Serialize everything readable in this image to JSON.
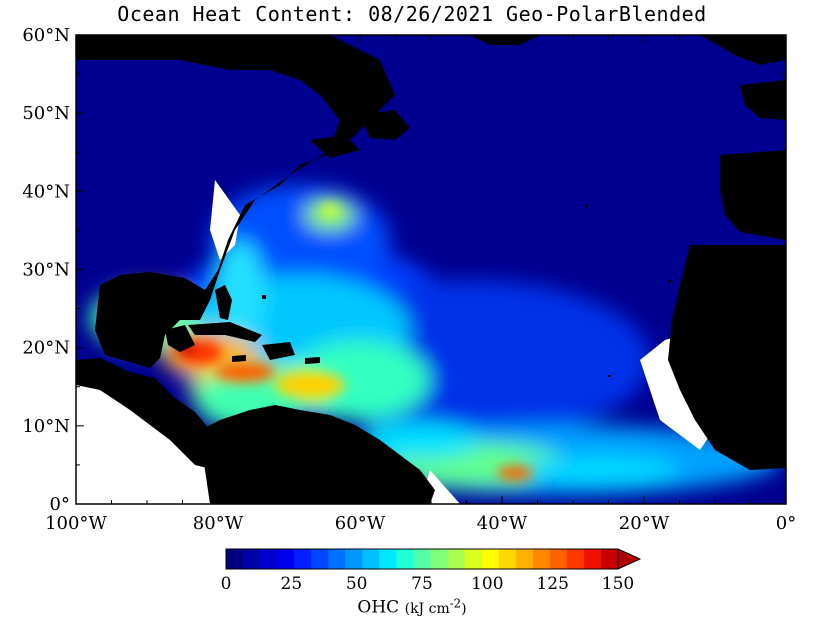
{
  "title": "Ocean Heat Content: 08/26/2021 Geo-PolarBlended",
  "map": {
    "x_axis_labels": [
      "100°W",
      "80°W",
      "60°W",
      "40°W",
      "20°W",
      "0°"
    ],
    "y_axis_labels": [
      "60°N",
      "50°N",
      "40°N",
      "30°N",
      "20°N",
      "10°N",
      "0°"
    ],
    "lon_range": [
      -100,
      0
    ],
    "lat_range": [
      0,
      60
    ],
    "land_color": "#000000",
    "nodata_color": "#ffffff"
  },
  "colorbar": {
    "min": 0,
    "max": 150,
    "tick_labels": [
      "0",
      "25",
      "50",
      "75",
      "100",
      "125",
      "150"
    ],
    "label": "OHC",
    "unit_label": "(kJ cm",
    "unit_exp": "-2",
    "unit_close": ")",
    "colors": [
      "#000080",
      "#0000a8",
      "#0000d0",
      "#0000f0",
      "#0020ff",
      "#0048ff",
      "#0070ff",
      "#0098ff",
      "#00c0ff",
      "#00e8ff",
      "#20ffd8",
      "#50ffa8",
      "#80ff78",
      "#a8ff50",
      "#d8ff20",
      "#ffff00",
      "#ffd800",
      "#ffb000",
      "#ff8800",
      "#ff6000",
      "#ff3800",
      "#f01000",
      "#c80000"
    ],
    "over_color": "#b00000"
  }
}
